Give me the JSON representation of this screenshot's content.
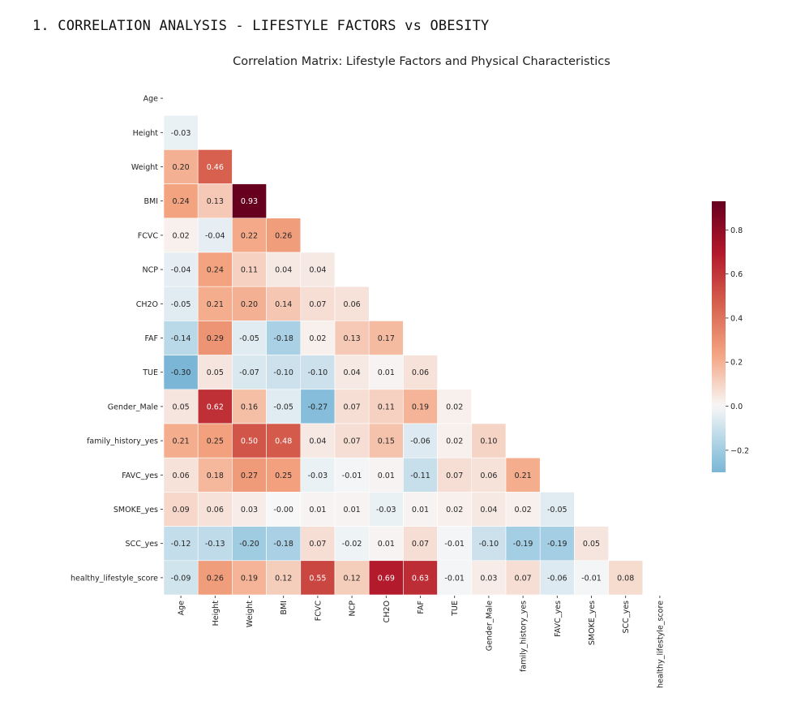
{
  "page": {
    "heading": "1. CORRELATION ANALYSIS - LIFESTYLE FACTORS vs OBESITY"
  },
  "chart_data": {
    "type": "heatmap",
    "title": "Correlation Matrix: Lifestyle Factors and Physical Characteristics",
    "mask": "upper-triangle-including-diagonal",
    "colormap": "RdBu_r",
    "colorbar": {
      "min": -0.3,
      "max": 0.93,
      "ticks": [
        -0.2,
        0.0,
        0.2,
        0.4,
        0.6,
        0.8
      ],
      "tick_labels": [
        "−0.2",
        "0.0",
        "0.2",
        "0.4",
        "0.6",
        "0.8"
      ]
    },
    "variables": [
      "Age",
      "Height",
      "Weight",
      "BMI",
      "FCVC",
      "NCP",
      "CH2O",
      "FAF",
      "TUE",
      "Gender_Male",
      "family_history_yes",
      "FAVC_yes",
      "SMOKE_yes",
      "SCC_yes",
      "healthy_lifestyle_score"
    ],
    "values": [
      [],
      [
        "-0.03"
      ],
      [
        "0.20",
        "0.46"
      ],
      [
        "0.24",
        "0.13",
        "0.93"
      ],
      [
        "0.02",
        "-0.04",
        "0.22",
        "0.26"
      ],
      [
        "-0.04",
        "0.24",
        "0.11",
        "0.04",
        "0.04"
      ],
      [
        "-0.05",
        "0.21",
        "0.20",
        "0.14",
        "0.07",
        "0.06"
      ],
      [
        "-0.14",
        "0.29",
        "-0.05",
        "-0.18",
        "0.02",
        "0.13",
        "0.17"
      ],
      [
        "-0.30",
        "0.05",
        "-0.07",
        "-0.10",
        "-0.10",
        "0.04",
        "0.01",
        "0.06"
      ],
      [
        "0.05",
        "0.62",
        "0.16",
        "-0.05",
        "-0.27",
        "0.07",
        "0.11",
        "0.19",
        "0.02"
      ],
      [
        "0.21",
        "0.25",
        "0.50",
        "0.48",
        "0.04",
        "0.07",
        "0.15",
        "-0.06",
        "0.02",
        "0.10"
      ],
      [
        "0.06",
        "0.18",
        "0.27",
        "0.25",
        "-0.03",
        "-0.01",
        "0.01",
        "-0.11",
        "0.07",
        "0.06",
        "0.21"
      ],
      [
        "0.09",
        "0.06",
        "0.03",
        "-0.00",
        "0.01",
        "0.01",
        "-0.03",
        "0.01",
        "0.02",
        "0.04",
        "0.02",
        "-0.05"
      ],
      [
        "-0.12",
        "-0.13",
        "-0.20",
        "-0.18",
        "0.07",
        "-0.02",
        "0.01",
        "0.07",
        "-0.01",
        "-0.10",
        "-0.19",
        "-0.19",
        "0.05"
      ],
      [
        "-0.09",
        "0.26",
        "0.19",
        "0.12",
        "0.55",
        "0.12",
        "0.69",
        "0.63",
        "-0.01",
        "0.03",
        "0.07",
        "-0.06",
        "-0.01",
        "0.08"
      ]
    ]
  }
}
